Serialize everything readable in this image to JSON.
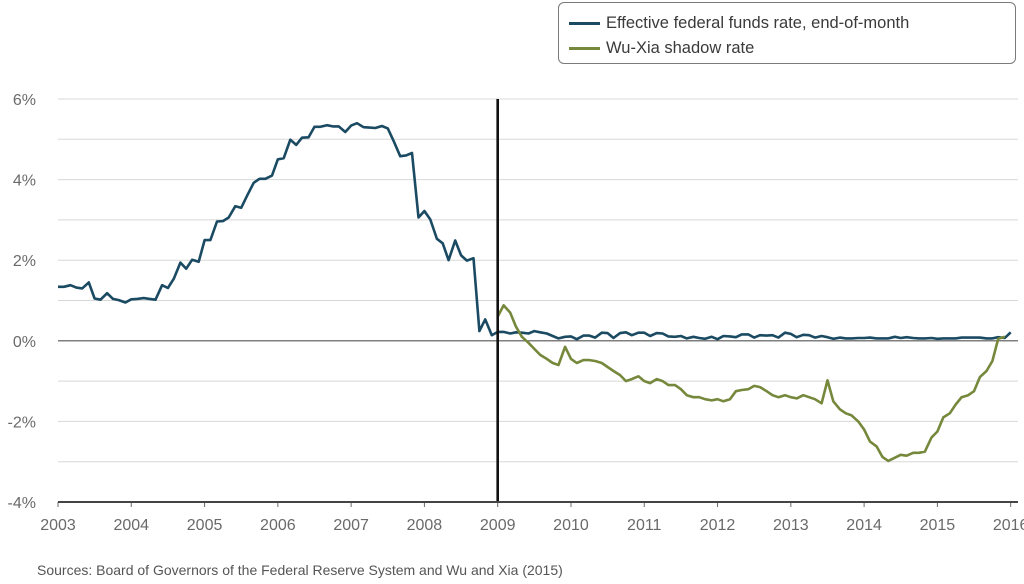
{
  "chart_data": {
    "type": "line",
    "title": "",
    "xlabel": "",
    "ylabel": "",
    "xlim": [
      2003.0,
      2016.1
    ],
    "ylim": [
      -4,
      6
    ],
    "x_ticks": [
      "2003",
      "2004",
      "2005",
      "2006",
      "2007",
      "2008",
      "2009",
      "2010",
      "2011",
      "2012",
      "2013",
      "2014",
      "2015",
      "2016"
    ],
    "y_ticks": [
      "6%",
      "4%",
      "2%",
      "0%",
      "-2%",
      "-4%"
    ],
    "y_tick_values": [
      6,
      4,
      2,
      0,
      -2,
      -4
    ],
    "grid": true,
    "vertical_marker_x": 2009.0,
    "legend_position": "top-right",
    "series": [
      {
        "name": "Effective federal funds rate, end-of-month",
        "color": "#1b4a63",
        "points": [
          [
            2003.0,
            1.34
          ],
          [
            2003.08,
            1.34
          ],
          [
            2003.17,
            1.38
          ],
          [
            2003.25,
            1.32
          ],
          [
            2003.33,
            1.3
          ],
          [
            2003.42,
            1.45
          ],
          [
            2003.5,
            1.05
          ],
          [
            2003.58,
            1.02
          ],
          [
            2003.67,
            1.18
          ],
          [
            2003.75,
            1.04
          ],
          [
            2003.83,
            1.01
          ],
          [
            2003.92,
            0.95
          ],
          [
            2004.0,
            1.03
          ],
          [
            2004.08,
            1.04
          ],
          [
            2004.17,
            1.06
          ],
          [
            2004.25,
            1.04
          ],
          [
            2004.33,
            1.02
          ],
          [
            2004.42,
            1.38
          ],
          [
            2004.5,
            1.31
          ],
          [
            2004.58,
            1.54
          ],
          [
            2004.67,
            1.94
          ],
          [
            2004.75,
            1.79
          ],
          [
            2004.83,
            2.01
          ],
          [
            2004.92,
            1.96
          ],
          [
            2005.0,
            2.5
          ],
          [
            2005.08,
            2.5
          ],
          [
            2005.17,
            2.96
          ],
          [
            2005.25,
            2.97
          ],
          [
            2005.33,
            3.06
          ],
          [
            2005.42,
            3.34
          ],
          [
            2005.5,
            3.3
          ],
          [
            2005.58,
            3.6
          ],
          [
            2005.67,
            3.92
          ],
          [
            2005.75,
            4.02
          ],
          [
            2005.83,
            4.02
          ],
          [
            2005.92,
            4.1
          ],
          [
            2006.0,
            4.5
          ],
          [
            2006.08,
            4.53
          ],
          [
            2006.17,
            4.99
          ],
          [
            2006.25,
            4.86
          ],
          [
            2006.33,
            5.04
          ],
          [
            2006.42,
            5.05
          ],
          [
            2006.5,
            5.31
          ],
          [
            2006.58,
            5.31
          ],
          [
            2006.67,
            5.35
          ],
          [
            2006.75,
            5.32
          ],
          [
            2006.83,
            5.32
          ],
          [
            2006.92,
            5.18
          ],
          [
            2007.0,
            5.34
          ],
          [
            2007.08,
            5.4
          ],
          [
            2007.17,
            5.3
          ],
          [
            2007.25,
            5.29
          ],
          [
            2007.33,
            5.28
          ],
          [
            2007.42,
            5.33
          ],
          [
            2007.5,
            5.27
          ],
          [
            2007.58,
            4.96
          ],
          [
            2007.67,
            4.58
          ],
          [
            2007.75,
            4.6
          ],
          [
            2007.83,
            4.66
          ],
          [
            2007.92,
            3.06
          ],
          [
            2008.0,
            3.22
          ],
          [
            2008.08,
            3.01
          ],
          [
            2008.17,
            2.53
          ],
          [
            2008.25,
            2.42
          ],
          [
            2008.33,
            2.0
          ],
          [
            2008.42,
            2.49
          ],
          [
            2008.5,
            2.12
          ],
          [
            2008.58,
            1.99
          ],
          [
            2008.67,
            2.05
          ],
          [
            2008.75,
            0.24
          ],
          [
            2008.83,
            0.53
          ],
          [
            2008.92,
            0.14
          ],
          [
            2009.0,
            0.22
          ],
          [
            2009.08,
            0.22
          ],
          [
            2009.17,
            0.18
          ],
          [
            2009.25,
            0.21
          ],
          [
            2009.33,
            0.2
          ],
          [
            2009.42,
            0.18
          ],
          [
            2009.5,
            0.24
          ],
          [
            2009.58,
            0.21
          ],
          [
            2009.67,
            0.18
          ],
          [
            2009.75,
            0.12
          ],
          [
            2009.83,
            0.06
          ],
          [
            2009.92,
            0.1
          ],
          [
            2010.0,
            0.11
          ],
          [
            2010.08,
            0.04
          ],
          [
            2010.17,
            0.13
          ],
          [
            2010.25,
            0.13
          ],
          [
            2010.33,
            0.08
          ],
          [
            2010.42,
            0.2
          ],
          [
            2010.5,
            0.19
          ],
          [
            2010.58,
            0.07
          ],
          [
            2010.67,
            0.19
          ],
          [
            2010.75,
            0.21
          ],
          [
            2010.83,
            0.14
          ],
          [
            2010.92,
            0.2
          ],
          [
            2011.0,
            0.2
          ],
          [
            2011.08,
            0.12
          ],
          [
            2011.17,
            0.19
          ],
          [
            2011.25,
            0.18
          ],
          [
            2011.33,
            0.11
          ],
          [
            2011.42,
            0.1
          ],
          [
            2011.5,
            0.12
          ],
          [
            2011.58,
            0.06
          ],
          [
            2011.67,
            0.1
          ],
          [
            2011.75,
            0.07
          ],
          [
            2011.83,
            0.05
          ],
          [
            2011.92,
            0.1
          ],
          [
            2012.0,
            0.04
          ],
          [
            2012.08,
            0.12
          ],
          [
            2012.17,
            0.11
          ],
          [
            2012.25,
            0.09
          ],
          [
            2012.33,
            0.16
          ],
          [
            2012.42,
            0.16
          ],
          [
            2012.5,
            0.08
          ],
          [
            2012.58,
            0.14
          ],
          [
            2012.67,
            0.13
          ],
          [
            2012.75,
            0.14
          ],
          [
            2012.83,
            0.08
          ],
          [
            2012.92,
            0.2
          ],
          [
            2013.0,
            0.17
          ],
          [
            2013.08,
            0.09
          ],
          [
            2013.17,
            0.15
          ],
          [
            2013.25,
            0.14
          ],
          [
            2013.33,
            0.08
          ],
          [
            2013.42,
            0.12
          ],
          [
            2013.5,
            0.09
          ],
          [
            2013.58,
            0.05
          ],
          [
            2013.67,
            0.08
          ],
          [
            2013.75,
            0.06
          ],
          [
            2013.83,
            0.06
          ],
          [
            2013.92,
            0.07
          ],
          [
            2014.0,
            0.07
          ],
          [
            2014.08,
            0.08
          ],
          [
            2014.17,
            0.06
          ],
          [
            2014.25,
            0.06
          ],
          [
            2014.33,
            0.06
          ],
          [
            2014.42,
            0.1
          ],
          [
            2014.5,
            0.07
          ],
          [
            2014.58,
            0.09
          ],
          [
            2014.67,
            0.07
          ],
          [
            2014.75,
            0.06
          ],
          [
            2014.83,
            0.06
          ],
          [
            2014.92,
            0.07
          ],
          [
            2015.0,
            0.05
          ],
          [
            2015.08,
            0.06
          ],
          [
            2015.17,
            0.06
          ],
          [
            2015.25,
            0.06
          ],
          [
            2015.33,
            0.08
          ],
          [
            2015.42,
            0.08
          ],
          [
            2015.5,
            0.08
          ],
          [
            2015.58,
            0.08
          ],
          [
            2015.67,
            0.06
          ],
          [
            2015.75,
            0.06
          ],
          [
            2015.83,
            0.09
          ],
          [
            2015.92,
            0.07
          ],
          [
            2016.0,
            0.21
          ]
        ]
      },
      {
        "name": "Wu-Xia shadow rate",
        "color": "#76883c",
        "points": [
          [
            2009.0,
            0.6
          ],
          [
            2009.08,
            0.88
          ],
          [
            2009.17,
            0.7
          ],
          [
            2009.25,
            0.35
          ],
          [
            2009.33,
            0.1
          ],
          [
            2009.42,
            -0.05
          ],
          [
            2009.5,
            -0.2
          ],
          [
            2009.58,
            -0.35
          ],
          [
            2009.67,
            -0.45
          ],
          [
            2009.75,
            -0.55
          ],
          [
            2009.83,
            -0.6
          ],
          [
            2009.92,
            -0.15
          ],
          [
            2010.0,
            -0.45
          ],
          [
            2010.08,
            -0.55
          ],
          [
            2010.17,
            -0.48
          ],
          [
            2010.25,
            -0.48
          ],
          [
            2010.33,
            -0.5
          ],
          [
            2010.42,
            -0.55
          ],
          [
            2010.5,
            -0.65
          ],
          [
            2010.58,
            -0.75
          ],
          [
            2010.67,
            -0.85
          ],
          [
            2010.75,
            -1.0
          ],
          [
            2010.83,
            -0.95
          ],
          [
            2010.92,
            -0.88
          ],
          [
            2011.0,
            -1.0
          ],
          [
            2011.08,
            -1.05
          ],
          [
            2011.17,
            -0.95
          ],
          [
            2011.25,
            -1.0
          ],
          [
            2011.33,
            -1.1
          ],
          [
            2011.42,
            -1.1
          ],
          [
            2011.5,
            -1.2
          ],
          [
            2011.58,
            -1.35
          ],
          [
            2011.67,
            -1.4
          ],
          [
            2011.75,
            -1.4
          ],
          [
            2011.83,
            -1.45
          ],
          [
            2011.92,
            -1.48
          ],
          [
            2012.0,
            -1.45
          ],
          [
            2012.08,
            -1.5
          ],
          [
            2012.17,
            -1.45
          ],
          [
            2012.25,
            -1.25
          ],
          [
            2012.33,
            -1.22
          ],
          [
            2012.42,
            -1.2
          ],
          [
            2012.5,
            -1.12
          ],
          [
            2012.58,
            -1.15
          ],
          [
            2012.67,
            -1.25
          ],
          [
            2012.75,
            -1.35
          ],
          [
            2012.83,
            -1.4
          ],
          [
            2012.92,
            -1.35
          ],
          [
            2013.0,
            -1.4
          ],
          [
            2013.08,
            -1.43
          ],
          [
            2013.17,
            -1.35
          ],
          [
            2013.25,
            -1.4
          ],
          [
            2013.33,
            -1.45
          ],
          [
            2013.42,
            -1.55
          ],
          [
            2013.5,
            -0.98
          ],
          [
            2013.58,
            -1.5
          ],
          [
            2013.67,
            -1.7
          ],
          [
            2013.75,
            -1.8
          ],
          [
            2013.83,
            -1.85
          ],
          [
            2013.92,
            -2.0
          ],
          [
            2014.0,
            -2.2
          ],
          [
            2014.08,
            -2.5
          ],
          [
            2014.17,
            -2.62
          ],
          [
            2014.25,
            -2.88
          ],
          [
            2014.33,
            -2.98
          ],
          [
            2014.42,
            -2.9
          ],
          [
            2014.5,
            -2.83
          ],
          [
            2014.58,
            -2.85
          ],
          [
            2014.67,
            -2.78
          ],
          [
            2014.75,
            -2.78
          ],
          [
            2014.83,
            -2.75
          ],
          [
            2014.92,
            -2.4
          ],
          [
            2015.0,
            -2.25
          ],
          [
            2015.08,
            -1.9
          ],
          [
            2015.17,
            -1.8
          ],
          [
            2015.25,
            -1.58
          ],
          [
            2015.33,
            -1.4
          ],
          [
            2015.42,
            -1.35
          ],
          [
            2015.5,
            -1.25
          ],
          [
            2015.58,
            -0.9
          ],
          [
            2015.67,
            -0.75
          ],
          [
            2015.75,
            -0.5
          ],
          [
            2015.83,
            0.05
          ],
          [
            2015.92,
            0.1
          ]
        ]
      }
    ]
  },
  "source_note": "Sources: Board of Governors of the Federal Reserve System and Wu and Xia (2015)"
}
